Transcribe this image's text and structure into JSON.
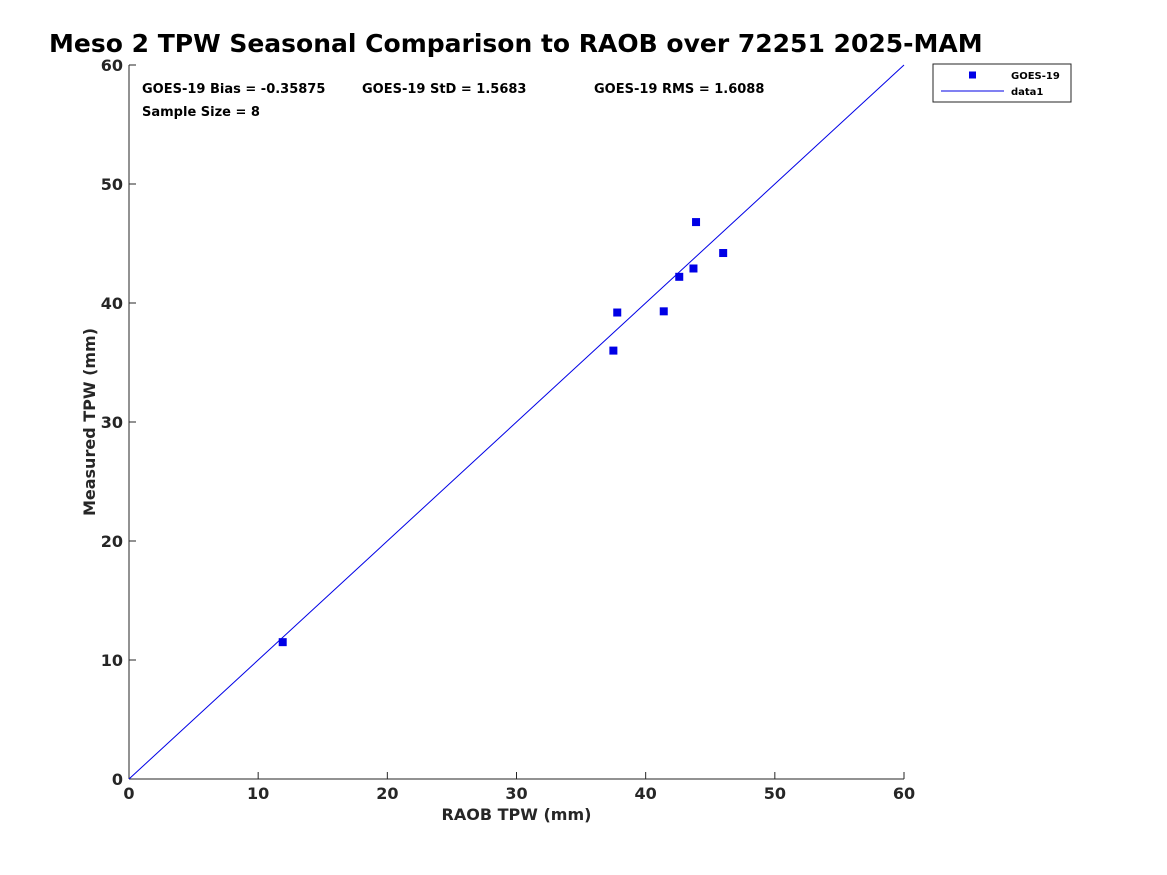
{
  "chart_data": {
    "type": "scatter",
    "title": "Meso 2 TPW Seasonal Comparison to RAOB over 72251 2025-MAM",
    "xlabel": "RAOB TPW (mm)",
    "ylabel": "Measured TPW (mm)",
    "xlim": [
      0,
      60
    ],
    "ylim": [
      0,
      60
    ],
    "xticks": [
      0,
      10,
      20,
      30,
      40,
      50,
      60
    ],
    "yticks": [
      0,
      10,
      20,
      30,
      40,
      50,
      60
    ],
    "grid": false,
    "legend_position": "top-right, outside plot",
    "stats": {
      "bias": "GOES-19 Bias = -0.35875",
      "std": "GOES-19 StD = 1.5683",
      "rms": "GOES-19 RMS = 1.6088",
      "sample_size": "Sample Size = 8"
    },
    "series": [
      {
        "name": "GOES-19",
        "marker": "square",
        "color": "#0000e6",
        "points": [
          {
            "x": 11.9,
            "y": 11.5
          },
          {
            "x": 37.5,
            "y": 36.0
          },
          {
            "x": 37.8,
            "y": 39.2
          },
          {
            "x": 41.4,
            "y": 39.3
          },
          {
            "x": 42.6,
            "y": 42.2
          },
          {
            "x": 43.7,
            "y": 42.9
          },
          {
            "x": 43.9,
            "y": 46.8
          },
          {
            "x": 46.0,
            "y": 44.2
          }
        ]
      },
      {
        "name": "data1",
        "type": "line",
        "color": "#0000e6",
        "points": [
          {
            "x": 0,
            "y": 0
          },
          {
            "x": 60,
            "y": 60
          }
        ]
      }
    ]
  }
}
